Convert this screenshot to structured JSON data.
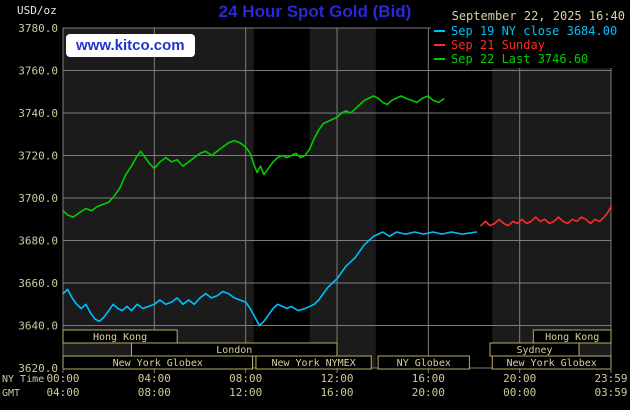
{
  "header": {
    "unit": "USD/oz",
    "title": "24 Hour Spot Gold (Bid)",
    "datetime": "September 22, 2025 16:40",
    "watermark": "www.kitco.com"
  },
  "legend": {
    "items": [
      {
        "label": "Sep 19 NY close 3684.00",
        "color": "#00bfff"
      },
      {
        "label": "Sep 21 Sunday",
        "color": "#ff2a2a"
      },
      {
        "label": "Sep 22 Last 3746.60",
        "color": "#00cc00"
      }
    ]
  },
  "chart_data": {
    "type": "line",
    "title": "24 Hour Spot Gold (Bid)",
    "unit": "USD/oz",
    "ylim": [
      3620,
      3780
    ],
    "ytick_step": 20,
    "xlim_hours": [
      0,
      24
    ],
    "x_axis_rows": [
      "NY Time",
      "GMT"
    ],
    "x_ticks": [
      {
        "h": 0,
        "ny": "00:00",
        "gmt": "04:00"
      },
      {
        "h": 4,
        "ny": "04:00",
        "gmt": "08:00"
      },
      {
        "h": 8,
        "ny": "08:00",
        "gmt": "12:00"
      },
      {
        "h": 12,
        "ny": "12:00",
        "gmt": "16:00"
      },
      {
        "h": 16,
        "ny": "16:00",
        "gmt": "20:00"
      },
      {
        "h": 20,
        "ny": "20:00",
        "gmt": "00:00"
      },
      {
        "h": 24,
        "ny": "23:59",
        "gmt": "03:59"
      }
    ],
    "colors": {
      "plot_bg": "#1b1b1b",
      "band": "#000000",
      "grid": "#7d7d7d",
      "axis_text": "#cfc99c",
      "session_border": "#b9ac62",
      "session_text": "#d6cfa2"
    },
    "bands": [
      {
        "start": 8.35,
        "end": 10.8
      },
      {
        "start": 13.7,
        "end": 18.8
      }
    ],
    "sessions": [
      {
        "label": "Hong Kong",
        "row": 0,
        "start": 0,
        "end": 5.0
      },
      {
        "label": "Hong Kong",
        "row": 0,
        "start": 20.6,
        "end": 24
      },
      {
        "label": "London",
        "row": 1,
        "start": 3.0,
        "end": 12.0
      },
      {
        "label": "Sydney",
        "row": 1,
        "start": 18.7,
        "end": 22.6
      },
      {
        "label": "New York Globex",
        "row": 2,
        "start": 0,
        "end": 8.3
      },
      {
        "label": "New York NYMEX",
        "row": 2,
        "start": 8.45,
        "end": 13.5
      },
      {
        "label": "NY Globex",
        "row": 2,
        "start": 13.8,
        "end": 17.8
      },
      {
        "label": "New York Globex",
        "row": 2,
        "start": 18.8,
        "end": 24
      }
    ],
    "series": [
      {
        "id": "sep19-ny-close",
        "name": "Sep 19 NY close",
        "close": 3684.0,
        "color": "#00bfff",
        "points": [
          [
            0,
            3655
          ],
          [
            0.2,
            3657
          ],
          [
            0.4,
            3653
          ],
          [
            0.6,
            3650
          ],
          [
            0.8,
            3648
          ],
          [
            1,
            3650
          ],
          [
            1.2,
            3646
          ],
          [
            1.4,
            3643
          ],
          [
            1.6,
            3642
          ],
          [
            1.8,
            3644
          ],
          [
            2,
            3647
          ],
          [
            2.2,
            3650
          ],
          [
            2.4,
            3648
          ],
          [
            2.6,
            3647
          ],
          [
            2.8,
            3649
          ],
          [
            3,
            3647
          ],
          [
            3.25,
            3650
          ],
          [
            3.5,
            3648
          ],
          [
            3.75,
            3649
          ],
          [
            4,
            3650
          ],
          [
            4.25,
            3652
          ],
          [
            4.5,
            3650
          ],
          [
            4.75,
            3651
          ],
          [
            5,
            3653
          ],
          [
            5.25,
            3650
          ],
          [
            5.5,
            3652
          ],
          [
            5.75,
            3650
          ],
          [
            6,
            3653
          ],
          [
            6.25,
            3655
          ],
          [
            6.5,
            3653
          ],
          [
            6.75,
            3654
          ],
          [
            7,
            3656
          ],
          [
            7.25,
            3655
          ],
          [
            7.5,
            3653
          ],
          [
            7.75,
            3652
          ],
          [
            8,
            3651
          ],
          [
            8.2,
            3648
          ],
          [
            8.4,
            3644
          ],
          [
            8.6,
            3640
          ],
          [
            8.8,
            3642
          ],
          [
            9,
            3645
          ],
          [
            9.2,
            3648
          ],
          [
            9.4,
            3650
          ],
          [
            9.6,
            3649
          ],
          [
            9.8,
            3648
          ],
          [
            10,
            3649
          ],
          [
            10.3,
            3647
          ],
          [
            10.6,
            3648
          ],
          [
            11,
            3650
          ],
          [
            11.2,
            3652
          ],
          [
            11.4,
            3655
          ],
          [
            11.6,
            3658
          ],
          [
            11.8,
            3660
          ],
          [
            12,
            3662
          ],
          [
            12.2,
            3665
          ],
          [
            12.4,
            3668
          ],
          [
            12.6,
            3670
          ],
          [
            12.8,
            3672
          ],
          [
            13,
            3675
          ],
          [
            13.2,
            3678
          ],
          [
            13.4,
            3680
          ],
          [
            13.6,
            3682
          ],
          [
            13.8,
            3683
          ],
          [
            14,
            3684
          ],
          [
            14.3,
            3682
          ],
          [
            14.6,
            3684
          ],
          [
            15,
            3683
          ],
          [
            15.4,
            3684
          ],
          [
            15.8,
            3683
          ],
          [
            16.2,
            3684
          ],
          [
            16.6,
            3683
          ],
          [
            17,
            3684
          ],
          [
            17.5,
            3683
          ],
          [
            18.1,
            3684
          ]
        ]
      },
      {
        "id": "sep21-sunday",
        "name": "Sep 21 Sunday",
        "color": "#ff2a2a",
        "points": [
          [
            18.3,
            3687
          ],
          [
            18.5,
            3689
          ],
          [
            18.7,
            3687
          ],
          [
            18.9,
            3688
          ],
          [
            19.1,
            3690
          ],
          [
            19.3,
            3688
          ],
          [
            19.5,
            3687
          ],
          [
            19.7,
            3689
          ],
          [
            19.9,
            3688
          ],
          [
            20.1,
            3690
          ],
          [
            20.3,
            3688
          ],
          [
            20.5,
            3689
          ],
          [
            20.7,
            3691
          ],
          [
            20.9,
            3689
          ],
          [
            21.1,
            3690
          ],
          [
            21.3,
            3688
          ],
          [
            21.5,
            3689
          ],
          [
            21.7,
            3691
          ],
          [
            21.9,
            3689
          ],
          [
            22.1,
            3688
          ],
          [
            22.3,
            3690
          ],
          [
            22.5,
            3689
          ],
          [
            22.7,
            3691
          ],
          [
            22.9,
            3690
          ],
          [
            23.1,
            3688
          ],
          [
            23.3,
            3690
          ],
          [
            23.5,
            3689
          ],
          [
            23.7,
            3691
          ],
          [
            23.85,
            3693
          ],
          [
            24,
            3696
          ]
        ]
      },
      {
        "id": "sep22-last",
        "name": "Sep 22 Last",
        "last": 3746.6,
        "color": "#00cc00",
        "points": [
          [
            0,
            3694
          ],
          [
            0.2,
            3692
          ],
          [
            0.45,
            3691
          ],
          [
            0.7,
            3693
          ],
          [
            1,
            3695
          ],
          [
            1.25,
            3694
          ],
          [
            1.5,
            3696
          ],
          [
            1.75,
            3697
          ],
          [
            2,
            3698
          ],
          [
            2.25,
            3701
          ],
          [
            2.5,
            3705
          ],
          [
            2.75,
            3711
          ],
          [
            3,
            3715
          ],
          [
            3.2,
            3719
          ],
          [
            3.4,
            3722
          ],
          [
            3.6,
            3719
          ],
          [
            3.8,
            3716
          ],
          [
            4,
            3714
          ],
          [
            4.25,
            3717
          ],
          [
            4.5,
            3719
          ],
          [
            4.75,
            3717
          ],
          [
            5,
            3718
          ],
          [
            5.25,
            3715
          ],
          [
            5.5,
            3717
          ],
          [
            5.75,
            3719
          ],
          [
            6,
            3721
          ],
          [
            6.25,
            3722
          ],
          [
            6.5,
            3720
          ],
          [
            6.75,
            3722
          ],
          [
            7,
            3724
          ],
          [
            7.25,
            3726
          ],
          [
            7.5,
            3727
          ],
          [
            7.75,
            3726
          ],
          [
            8,
            3724
          ],
          [
            8.2,
            3721
          ],
          [
            8.35,
            3716
          ],
          [
            8.5,
            3712
          ],
          [
            8.65,
            3715
          ],
          [
            8.8,
            3711
          ],
          [
            9,
            3714
          ],
          [
            9.2,
            3717
          ],
          [
            9.4,
            3719
          ],
          [
            9.6,
            3720
          ],
          [
            9.8,
            3719
          ],
          [
            10,
            3720
          ],
          [
            10.2,
            3721
          ],
          [
            10.4,
            3719
          ],
          [
            10.6,
            3720
          ],
          [
            10.8,
            3723
          ],
          [
            11,
            3728
          ],
          [
            11.2,
            3732
          ],
          [
            11.4,
            3735
          ],
          [
            11.6,
            3736
          ],
          [
            11.8,
            3737
          ],
          [
            12,
            3738
          ],
          [
            12.2,
            3740
          ],
          [
            12.4,
            3741
          ],
          [
            12.6,
            3740
          ],
          [
            12.8,
            3742
          ],
          [
            13,
            3744
          ],
          [
            13.2,
            3746
          ],
          [
            13.4,
            3747
          ],
          [
            13.6,
            3748
          ],
          [
            13.8,
            3747
          ],
          [
            14,
            3745
          ],
          [
            14.2,
            3744
          ],
          [
            14.4,
            3746
          ],
          [
            14.6,
            3747
          ],
          [
            14.8,
            3748
          ],
          [
            15,
            3747
          ],
          [
            15.25,
            3746
          ],
          [
            15.5,
            3745
          ],
          [
            15.75,
            3747
          ],
          [
            16,
            3748
          ],
          [
            16.2,
            3746
          ],
          [
            16.45,
            3745
          ],
          [
            16.67,
            3746.6
          ]
        ]
      }
    ]
  }
}
